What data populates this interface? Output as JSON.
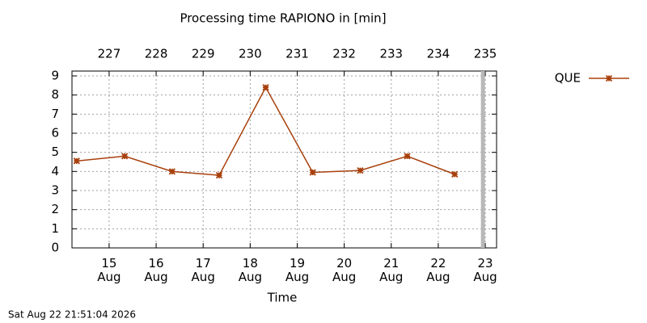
{
  "chart_data": {
    "type": "line",
    "title": "Processing time RAPIONO in [min]",
    "xlabel": "Time",
    "timestamp": "Sat Aug 22 21:51:04 2026",
    "x": [
      226.31,
      227.33,
      228.34,
      229.34,
      230.33,
      231.33,
      232.34,
      233.34,
      234.35
    ],
    "series": [
      {
        "name": "QUE",
        "color": "#a8400c",
        "values": [
          4.55,
          4.8,
          4.0,
          3.8,
          8.4,
          3.95,
          4.05,
          4.8,
          3.85
        ]
      }
    ],
    "xlim": [
      226.21,
      235.24
    ],
    "xticks": [
      {
        "value": 227,
        "label": "15\nAug"
      },
      {
        "value": 228,
        "label": "16\nAug"
      },
      {
        "value": 229,
        "label": "17\nAug"
      },
      {
        "value": 230,
        "label": "18\nAug"
      },
      {
        "value": 231,
        "label": "19\nAug"
      },
      {
        "value": 232,
        "label": "20\nAug"
      },
      {
        "value": 233,
        "label": "21\nAug"
      },
      {
        "value": 234,
        "label": "22\nAug"
      },
      {
        "value": 235,
        "label": "23\nAug"
      }
    ],
    "x2ticks": [
      227,
      228,
      229,
      230,
      231,
      232,
      233,
      234,
      235
    ],
    "ylim": [
      0,
      9
    ],
    "yticks": [
      0,
      1,
      2,
      3,
      4,
      5,
      6,
      7,
      8,
      9
    ],
    "now_marker": 234.95,
    "grid": true
  }
}
